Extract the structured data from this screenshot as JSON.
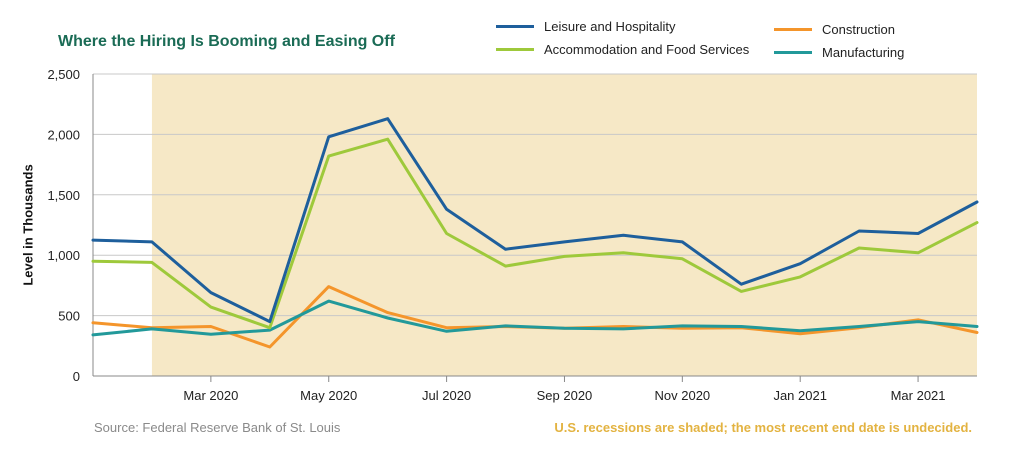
{
  "chart_data": {
    "type": "line",
    "title": "Where the Hiring Is Booming and Easing Off",
    "ylabel": "Level in Thousands",
    "xlabel": "",
    "ylim": [
      0,
      2500
    ],
    "yticks": [
      "0",
      "500",
      "1,000",
      "1,500",
      "2,000",
      "2,500"
    ],
    "ytick_values": [
      0,
      500,
      1000,
      1500,
      2000,
      2500
    ],
    "x": [
      "2020-01",
      "2020-02",
      "2020-03",
      "2020-04",
      "2020-05",
      "2020-06",
      "2020-07",
      "2020-08",
      "2020-09",
      "2020-10",
      "2020-11",
      "2020-12",
      "2021-01",
      "2021-02",
      "2021-03",
      "2021-04"
    ],
    "xtick_labels": [
      "Mar 2020",
      "May 2020",
      "Jul 2020",
      "Sep 2020",
      "Nov 2020",
      "Jan 2021",
      "Mar 2021"
    ],
    "xtick_index": [
      2,
      4,
      6,
      8,
      10,
      12,
      14
    ],
    "recession_start": "2020-02",
    "grid": "horizontal",
    "legend_placement": "top-right",
    "series": [
      {
        "name": "Leisure and Hospitality",
        "color": "#1e5f9c",
        "values": [
          1125,
          1110,
          690,
          450,
          1980,
          2130,
          1380,
          1050,
          1110,
          1165,
          1110,
          760,
          930,
          1200,
          1180,
          1440
        ]
      },
      {
        "name": "Accommodation and Food Services",
        "color": "#9ec93b",
        "values": [
          950,
          940,
          570,
          400,
          1820,
          1960,
          1180,
          910,
          990,
          1020,
          970,
          700,
          820,
          1060,
          1020,
          1270
        ]
      },
      {
        "name": "Construction",
        "color": "#f4952b",
        "values": [
          440,
          400,
          410,
          240,
          740,
          525,
          400,
          410,
          395,
          410,
          395,
          400,
          350,
          400,
          465,
          360
        ]
      },
      {
        "name": "Manufacturing",
        "color": "#22999a",
        "values": [
          340,
          390,
          345,
          380,
          620,
          480,
          370,
          415,
          395,
          390,
          415,
          410,
          375,
          410,
          450,
          410
        ]
      }
    ]
  },
  "source": "Source: Federal Reserve Bank of St. Louis",
  "note": "U.S. recessions are shaded; the most recent end date is undecided."
}
